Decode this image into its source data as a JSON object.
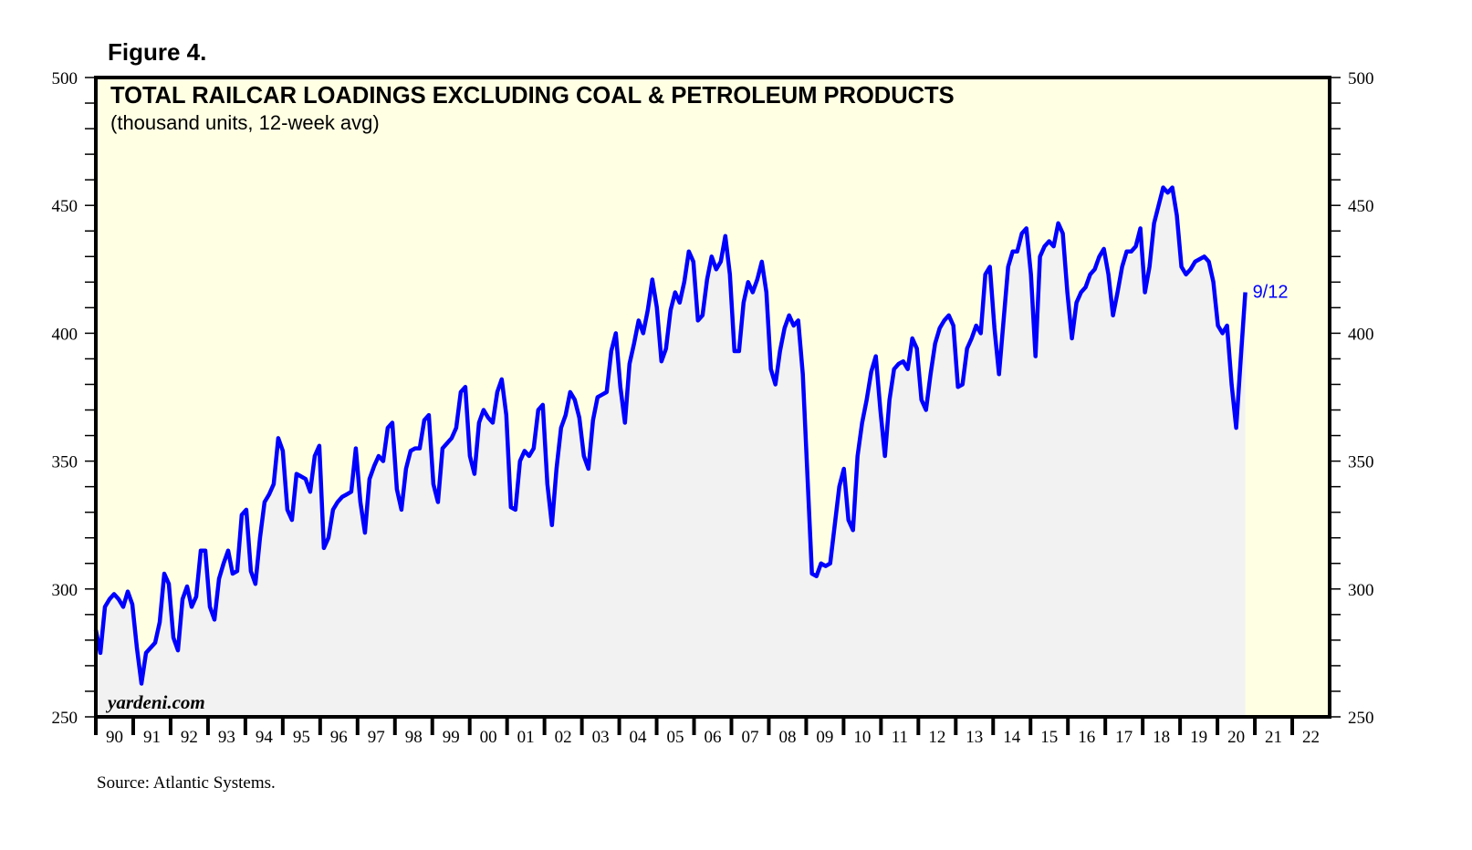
{
  "figure_label": "Figure 4.",
  "source": "Source: Atlantic Systems.",
  "watermark": "yardeni.com",
  "colors": {
    "line": "#0000ff",
    "plot_bg": "#ffffe3",
    "fill": "#f2f2f2",
    "frame": "#000000"
  },
  "chart_data": {
    "type": "area",
    "title": "TOTAL RAILCAR LOADINGS EXCLUDING COAL & PETROLEUM PRODUCTS",
    "subtitle": "(thousand units, 12-week avg)",
    "xlabel": "",
    "ylabel": "",
    "ylim": [
      250,
      500
    ],
    "yticks": [
      250,
      300,
      350,
      400,
      450,
      500
    ],
    "y_minor_step": 10,
    "xlim": [
      1990,
      2023
    ],
    "xtick_labels": [
      "90",
      "91",
      "92",
      "93",
      "94",
      "95",
      "96",
      "97",
      "98",
      "99",
      "00",
      "01",
      "02",
      "03",
      "04",
      "05",
      "06",
      "07",
      "08",
      "09",
      "10",
      "11",
      "12",
      "13",
      "14",
      "15",
      "16",
      "17",
      "18",
      "19",
      "20",
      "21",
      "22"
    ],
    "grid": false,
    "last_label": "9/12",
    "series": [
      {
        "name": "Total railcar loadings excluding coal & petroleum products",
        "start_year": 1990.0,
        "step_years": 0.122,
        "values": [
          284,
          275,
          293,
          296,
          298,
          296,
          293,
          299,
          294,
          277,
          263,
          275,
          277,
          279,
          287,
          306,
          302,
          281,
          276,
          296,
          301,
          293,
          297,
          315,
          315,
          293,
          288,
          304,
          310,
          315,
          306,
          307,
          329,
          331,
          307,
          302,
          320,
          334,
          337,
          341,
          359,
          354,
          331,
          327,
          345,
          344,
          343,
          338,
          352,
          356,
          316,
          320,
          331,
          334,
          336,
          337,
          338,
          355,
          334,
          322,
          343,
          348,
          352,
          350,
          363,
          365,
          339,
          331,
          347,
          354,
          355,
          355,
          366,
          368,
          341,
          334,
          355,
          357,
          359,
          363,
          377,
          379,
          352,
          345,
          365,
          370,
          367,
          365,
          377,
          382,
          368,
          332,
          331,
          350,
          354,
          352,
          355,
          370,
          372,
          341,
          325,
          347,
          363,
          368,
          377,
          374,
          367,
          352,
          347,
          366,
          375,
          376,
          377,
          393,
          400,
          379,
          365,
          388,
          396,
          405,
          400,
          409,
          421,
          410,
          389,
          394,
          409,
          416,
          412,
          420,
          432,
          428,
          405,
          407,
          421,
          430,
          425,
          428,
          438,
          423,
          393,
          393,
          412,
          420,
          416,
          421,
          428,
          416,
          386,
          380,
          393,
          402,
          407,
          403,
          405,
          384,
          345,
          306,
          305,
          310,
          309,
          310,
          325,
          340,
          347,
          327,
          323,
          352,
          365,
          374,
          385,
          391,
          370,
          352,
          374,
          386,
          388,
          389,
          386,
          398,
          394,
          374,
          370,
          384,
          396,
          402,
          405,
          407,
          403,
          379,
          380,
          394,
          398,
          403,
          400,
          423,
          426,
          402,
          384,
          405,
          426,
          432,
          432,
          439,
          441,
          423,
          391,
          430,
          434,
          436,
          434,
          443,
          439,
          416,
          398,
          412,
          416,
          418,
          423,
          425,
          430,
          433,
          423,
          407,
          416,
          426,
          432,
          432,
          434,
          441,
          416,
          426,
          443,
          450,
          457,
          455,
          457,
          446,
          426,
          423,
          425,
          428,
          429,
          430,
          428,
          420,
          403,
          400,
          403,
          380,
          363,
          390,
          416
        ]
      }
    ]
  }
}
